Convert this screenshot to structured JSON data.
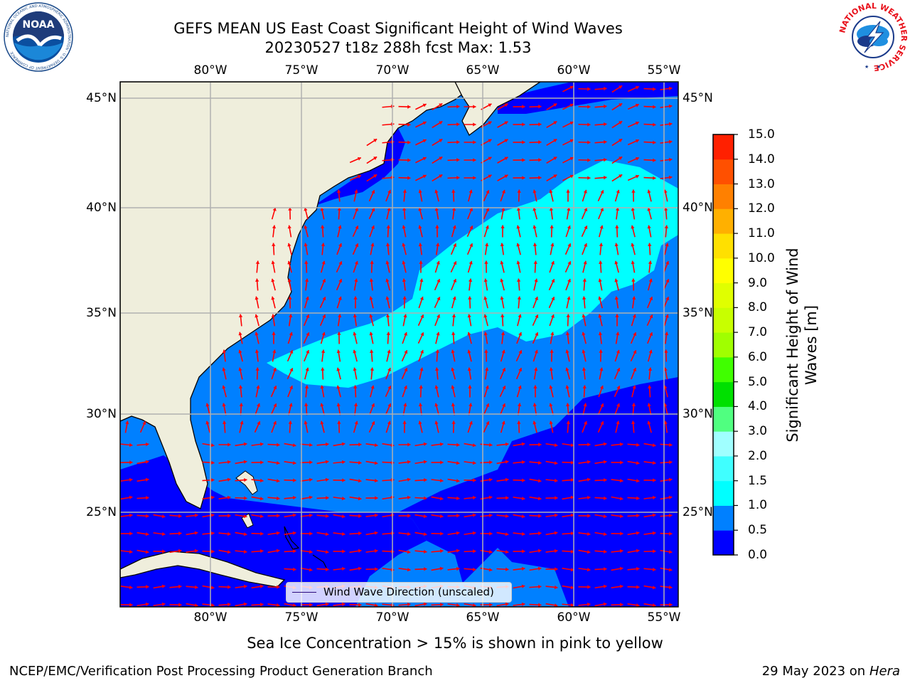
{
  "title": {
    "line1": "GEFS MEAN US East Coast Significant Height of Wind Waves",
    "line2": "20230527 t18z 288h fcst   Max: 1.53"
  },
  "logos": {
    "left": "NOAA",
    "left_ring": "NATIONAL OCEANIC AND ATMOSPHERIC ADMINISTRATION · U.S. DEPARTMENT OF COMMERCE",
    "right_ring": "NATIONAL WEATHER SERVICE"
  },
  "map": {
    "projection": "cylindrical",
    "lon_range": [
      -85,
      -54.5
    ],
    "lat_range": [
      20.5,
      45.8
    ],
    "lon_ticks": [
      "80°W",
      "75°W",
      "70°W",
      "65°W",
      "60°W",
      "55°W"
    ],
    "lat_ticks": [
      "45°N",
      "40°N",
      "35°N",
      "30°N",
      "25°N"
    ],
    "grid": true,
    "arrows_color": "#ff0000",
    "land_color": "#efeedc",
    "field": "Significant Height of Wind Waves",
    "max_value": 1.53
  },
  "colorbar": {
    "label": "Significant Height of Wind Waves [m]",
    "ticks": [
      "0.0",
      "0.5",
      "1.0",
      "1.5",
      "2.0",
      "3.0",
      "4.0",
      "5.0",
      "6.0",
      "7.0",
      "8.0",
      "9.0",
      "10.0",
      "11.0",
      "12.0",
      "13.0",
      "14.0",
      "15.0"
    ],
    "colors": [
      "#0000ff",
      "#0080ff",
      "#00ffff",
      "#40ffff",
      "#a0ffff",
      "#50ff80",
      "#00e000",
      "#40ff00",
      "#a0ff00",
      "#c8ff00",
      "#e0ff00",
      "#ffff00",
      "#ffe000",
      "#ffb000",
      "#ff8000",
      "#ff5000",
      "#ff2000"
    ]
  },
  "legend": {
    "label": "Wind Wave Direction (unscaled)"
  },
  "notes": {
    "sea_ice": "Sea Ice Concentration > 15% is shown in pink to yellow"
  },
  "footer": {
    "left": "NCEP/EMC/Verification Post Processing Product Generation Branch",
    "right_date": "29 May 2023 on",
    "right_host": "Hera"
  }
}
